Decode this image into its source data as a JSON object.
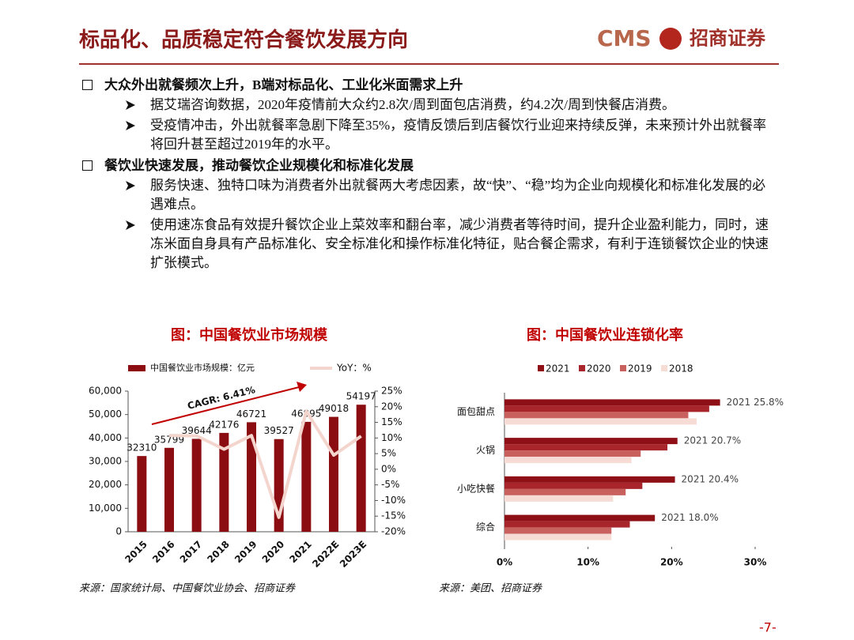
{
  "header": {
    "title": "标品化、品质稳定符合餐饮发展方向",
    "logo_text": "CMS",
    "logo_name": "招商证券"
  },
  "bullets": [
    {
      "text": "大众外出就餐频次上升，B端对标品化、工业化米面需求上升",
      "items": [
        "据艾瑞咨询数据，2020年疫情前大众约2.8次/周到面包店消费，约4.2次/周到快餐店消费。",
        "受疫情冲击，外出就餐率急剧下降至35%，疫情反馈后到店餐饮行业迎来持续反弹，未来预计外出就餐率将回升甚至超过2019年的水平。"
      ]
    },
    {
      "text": "餐饮业快速发展，推动餐饮企业规模化和标准化发展",
      "items": [
        "服务快速、独特口味为消费者外出就餐两大考虑因素，故“快”、“稳”均为企业向规模化和标准化发展的必遇难点。",
        "使用速冻食品有效提升餐饮企业上菜效率和翻台率，减少消费者等待时间，提升企业盈利能力，同时，速冻米面自身具有产品标准化、安全标准化和操作标准化特征，贴合餐企需求，有利于连锁餐饮企业的快速扩张模式。"
      ]
    }
  ],
  "chart_data": [
    {
      "type": "bar",
      "title": "图：中国餐饮业市场规模",
      "categories": [
        "2015",
        "2016",
        "2017",
        "2018",
        "2019",
        "2020",
        "2021",
        "2022E",
        "2023E"
      ],
      "series": [
        {
          "name": "中国餐饮业市场规模：亿元",
          "color": "#8b0d12",
          "values": [
            32310,
            35799,
            39644,
            42176,
            46721,
            39527,
            46895,
            49018,
            54197
          ]
        },
        {
          "name": "YoY：%",
          "type": "line",
          "axis": "y2",
          "color": "#f4d5cd",
          "values": [
            null,
            10.8,
            10.7,
            6.4,
            10.8,
            -15.4,
            18.6,
            4.5,
            10.6
          ]
        }
      ],
      "ylim": [
        0,
        60000
      ],
      "yticks": [
        0,
        {
          "value": 10000,
          "label": "10,000"
        },
        {
          "value": 20000,
          "label": "20,000"
        },
        {
          "value": 30000,
          "label": "30,000"
        },
        {
          "value": 40000,
          "label": "40,000"
        },
        {
          "value": 50000,
          "label": "50,000"
        },
        {
          "value": 60000,
          "label": "60,000"
        }
      ],
      "y2lim": [
        -20,
        25
      ],
      "y2ticks": [
        {
          "value": -20,
          "label": "-20%"
        },
        {
          "value": -15,
          "label": "-15%"
        },
        {
          "value": -10,
          "label": "-10%"
        },
        {
          "value": -5,
          "label": "-5%"
        },
        {
          "value": 0,
          "label": "0%"
        },
        {
          "value": 5,
          "label": "5%"
        },
        {
          "value": 10,
          "label": "10%"
        },
        {
          "value": 15,
          "label": "15%"
        },
        {
          "value": 20,
          "label": "20%"
        },
        {
          "value": 25,
          "label": "25%"
        }
      ],
      "annotation": "CAGR: 6.41%",
      "source": "来源：国家统计局、中国餐饮业协会、招商证券"
    },
    {
      "type": "barh",
      "title": "图：中国餐饮业连锁化率",
      "categories": [
        "面包甜点",
        "火锅",
        "小吃快餐",
        "综合"
      ],
      "series": [
        {
          "name": "2021",
          "color": "#8e1016",
          "values": [
            25.8,
            20.7,
            20.4,
            18.0
          ],
          "value_labels": [
            "2021 25.8%",
            "2021 20.7%",
            "2021 20.4%",
            "2021 18.0%"
          ]
        },
        {
          "name": "2020",
          "color": "#a8252b",
          "values": [
            24.5,
            19.5,
            16.5,
            15.0
          ]
        },
        {
          "name": "2019",
          "color": "#c8605e",
          "values": [
            22.0,
            16.3,
            14.5,
            12.8
          ]
        },
        {
          "name": "2018",
          "color": "#f6dcd5",
          "values": [
            23.0,
            15.2,
            13.0,
            12.8
          ]
        }
      ],
      "xlim": [
        0,
        30
      ],
      "xticks": [
        {
          "value": 0,
          "label": "0%"
        },
        {
          "value": 10,
          "label": "10%"
        },
        {
          "value": 20,
          "label": "20%"
        },
        {
          "value": 30,
          "label": "30%"
        }
      ],
      "source": "来源：美团、招商证券"
    }
  ],
  "page_number": "-7-"
}
